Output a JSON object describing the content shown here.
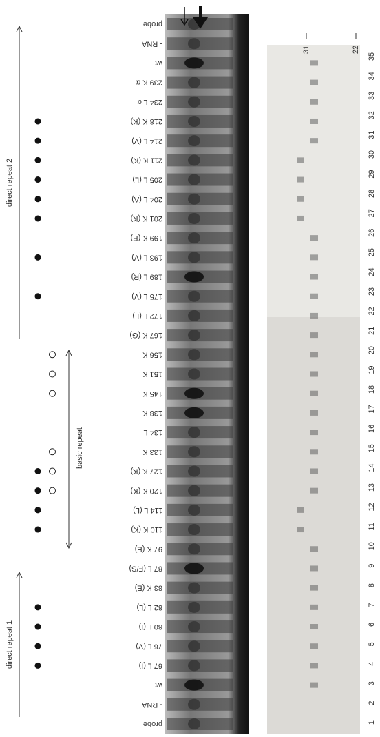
{
  "annotations": [
    "direct repeat 1",
    "basic repeat",
    "direct repeat 2"
  ],
  "lanes": {
    "labels": [
      "probe",
      "- RNA",
      "wt",
      "67 L (I)",
      "76 L (V)",
      "80 L (I)",
      "82 L (L)",
      "83 K (E)",
      "87 L (F/S)",
      "97 K (E)",
      "110 K (K)",
      "114 L (L)",
      "120 K (K)",
      "127 K (K)",
      "133 K",
      "134 L",
      "138 K",
      "145 K",
      "151 K",
      "156 K",
      "167 K (G)",
      "172 L (L)",
      "175 L (V)",
      "189 L (R)",
      "193 L (V)",
      "199 K (E)",
      "201 K (K)",
      "204 L (A)",
      "205 L (L)",
      "211 K (K)",
      "214 L (V)",
      "218 K (K)",
      "234 L α",
      "239 K α",
      "wt",
      "- RNA",
      "probe"
    ],
    "numbers": [
      1,
      2,
      3,
      4,
      5,
      6,
      7,
      8,
      9,
      10,
      11,
      12,
      13,
      14,
      15,
      16,
      17,
      18,
      19,
      20,
      21,
      22,
      23,
      24,
      25,
      26,
      27,
      28,
      29,
      30,
      31,
      32,
      33,
      34,
      35
    ]
  },
  "markers": [
    "31",
    "22"
  ]
}
